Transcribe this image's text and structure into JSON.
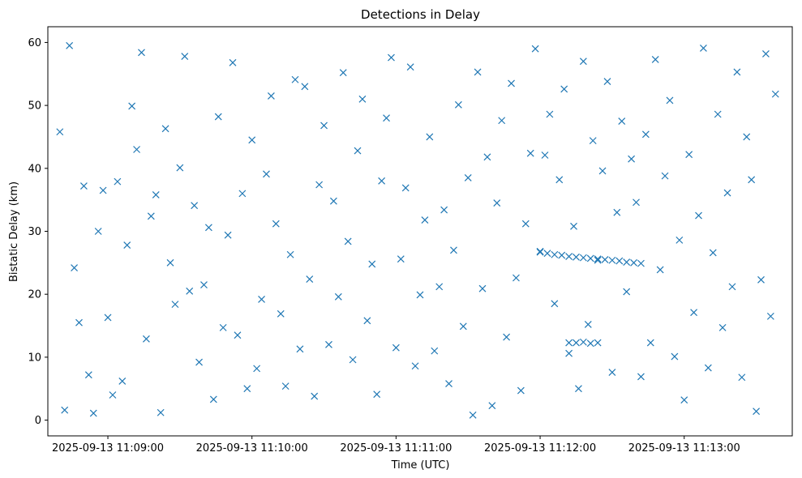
{
  "chart_data": {
    "type": "scatter",
    "title": "Detections in Delay",
    "xlabel": "Time (UTC)",
    "ylabel": "Bistatic Delay (km)",
    "x_axis": "datetime",
    "xlim": [
      "2025-09-13 11:08:35",
      "2025-09-13 11:13:45"
    ],
    "ylim": [
      -2.5,
      62.5
    ],
    "xticks": [
      "2025-09-13 11:09:00",
      "2025-09-13 11:10:00",
      "2025-09-13 11:11:00",
      "2025-09-13 11:12:00",
      "2025-09-13 11:13:00"
    ],
    "yticks": [
      0,
      10,
      20,
      30,
      40,
      50,
      60
    ],
    "grid": false,
    "marker": "x",
    "color": "#1f77b4",
    "series": [
      {
        "x": [
          "2025-09-13 11:08:40",
          "2025-09-13 11:08:42",
          "2025-09-13 11:08:44",
          "2025-09-13 11:08:46",
          "2025-09-13 11:08:48",
          "2025-09-13 11:08:50",
          "2025-09-13 11:08:52",
          "2025-09-13 11:08:54",
          "2025-09-13 11:08:56",
          "2025-09-13 11:08:58",
          "2025-09-13 11:09:00",
          "2025-09-13 11:09:02",
          "2025-09-13 11:09:04",
          "2025-09-13 11:09:06",
          "2025-09-13 11:09:08",
          "2025-09-13 11:09:10",
          "2025-09-13 11:09:12",
          "2025-09-13 11:09:14",
          "2025-09-13 11:09:16",
          "2025-09-13 11:09:18",
          "2025-09-13 11:09:20",
          "2025-09-13 11:09:22",
          "2025-09-13 11:09:24",
          "2025-09-13 11:09:26",
          "2025-09-13 11:09:28",
          "2025-09-13 11:09:30",
          "2025-09-13 11:09:32",
          "2025-09-13 11:09:34",
          "2025-09-13 11:09:36",
          "2025-09-13 11:09:38",
          "2025-09-13 11:09:40",
          "2025-09-13 11:09:42",
          "2025-09-13 11:09:44",
          "2025-09-13 11:09:46",
          "2025-09-13 11:09:48",
          "2025-09-13 11:09:50",
          "2025-09-13 11:09:52",
          "2025-09-13 11:09:54",
          "2025-09-13 11:09:56",
          "2025-09-13 11:09:58",
          "2025-09-13 11:10:00",
          "2025-09-13 11:10:02",
          "2025-09-13 11:10:04",
          "2025-09-13 11:10:06",
          "2025-09-13 11:10:08",
          "2025-09-13 11:10:10",
          "2025-09-13 11:10:12",
          "2025-09-13 11:10:14",
          "2025-09-13 11:10:16",
          "2025-09-13 11:10:18",
          "2025-09-13 11:10:20",
          "2025-09-13 11:10:22",
          "2025-09-13 11:10:24",
          "2025-09-13 11:10:26",
          "2025-09-13 11:10:28",
          "2025-09-13 11:10:30",
          "2025-09-13 11:10:32",
          "2025-09-13 11:10:34",
          "2025-09-13 11:10:36",
          "2025-09-13 11:10:38",
          "2025-09-13 11:10:40",
          "2025-09-13 11:10:42",
          "2025-09-13 11:10:44",
          "2025-09-13 11:10:46",
          "2025-09-13 11:10:48",
          "2025-09-13 11:10:50",
          "2025-09-13 11:10:52",
          "2025-09-13 11:10:54",
          "2025-09-13 11:10:56",
          "2025-09-13 11:10:58",
          "2025-09-13 11:11:00",
          "2025-09-13 11:11:02",
          "2025-09-13 11:11:04",
          "2025-09-13 11:11:06",
          "2025-09-13 11:11:08",
          "2025-09-13 11:11:10",
          "2025-09-13 11:11:12",
          "2025-09-13 11:11:14",
          "2025-09-13 11:11:16",
          "2025-09-13 11:11:18",
          "2025-09-13 11:11:20",
          "2025-09-13 11:11:22",
          "2025-09-13 11:11:24",
          "2025-09-13 11:11:26",
          "2025-09-13 11:11:28",
          "2025-09-13 11:11:30",
          "2025-09-13 11:11:32",
          "2025-09-13 11:11:34",
          "2025-09-13 11:11:36",
          "2025-09-13 11:11:38",
          "2025-09-13 11:11:40",
          "2025-09-13 11:11:42",
          "2025-09-13 11:11:44",
          "2025-09-13 11:11:46",
          "2025-09-13 11:11:48",
          "2025-09-13 11:11:50",
          "2025-09-13 11:11:52",
          "2025-09-13 11:11:54",
          "2025-09-13 11:11:56",
          "2025-09-13 11:11:58",
          "2025-09-13 11:12:00",
          "2025-09-13 11:12:02",
          "2025-09-13 11:12:04",
          "2025-09-13 11:12:06",
          "2025-09-13 11:12:08",
          "2025-09-13 11:12:10",
          "2025-09-13 11:12:12",
          "2025-09-13 11:12:14",
          "2025-09-13 11:12:16",
          "2025-09-13 11:12:18",
          "2025-09-13 11:12:20",
          "2025-09-13 11:12:22",
          "2025-09-13 11:12:24",
          "2025-09-13 11:12:26",
          "2025-09-13 11:12:28",
          "2025-09-13 11:12:30",
          "2025-09-13 11:12:32",
          "2025-09-13 11:12:34",
          "2025-09-13 11:12:36",
          "2025-09-13 11:12:38",
          "2025-09-13 11:12:40",
          "2025-09-13 11:12:42",
          "2025-09-13 11:12:44",
          "2025-09-13 11:12:46",
          "2025-09-13 11:12:48",
          "2025-09-13 11:12:50",
          "2025-09-13 11:12:52",
          "2025-09-13 11:12:54",
          "2025-09-13 11:12:56",
          "2025-09-13 11:12:58",
          "2025-09-13 11:13:00",
          "2025-09-13 11:13:02",
          "2025-09-13 11:13:04",
          "2025-09-13 11:13:06",
          "2025-09-13 11:13:08",
          "2025-09-13 11:13:10",
          "2025-09-13 11:13:12",
          "2025-09-13 11:13:14",
          "2025-09-13 11:13:16",
          "2025-09-13 11:13:18",
          "2025-09-13 11:13:20",
          "2025-09-13 11:13:22",
          "2025-09-13 11:13:24",
          "2025-09-13 11:13:26",
          "2025-09-13 11:13:28",
          "2025-09-13 11:13:30",
          "2025-09-13 11:13:32",
          "2025-09-13 11:13:34",
          "2025-09-13 11:13:36",
          "2025-09-13 11:13:38",
          "2025-09-13 11:12:00",
          "2025-09-13 11:12:03",
          "2025-09-13 11:12:06",
          "2025-09-13 11:12:09",
          "2025-09-13 11:12:12",
          "2025-09-13 11:12:15",
          "2025-09-13 11:12:18",
          "2025-09-13 11:12:21",
          "2025-09-13 11:12:24",
          "2025-09-13 11:12:27",
          "2025-09-13 11:12:30",
          "2025-09-13 11:12:33",
          "2025-09-13 11:12:36",
          "2025-09-13 11:12:39",
          "2025-09-13 11:12:42",
          "2025-09-13 11:12:12",
          "2025-09-13 11:12:15",
          "2025-09-13 11:12:18",
          "2025-09-13 11:12:21",
          "2025-09-13 11:12:24"
        ],
        "y": [
          45.8,
          1.6,
          59.5,
          24.2,
          15.5,
          37.2,
          7.2,
          1.1,
          30.0,
          36.5,
          16.3,
          4.0,
          37.9,
          6.2,
          27.8,
          49.9,
          43.0,
          58.4,
          12.9,
          32.4,
          35.8,
          1.2,
          46.3,
          25.0,
          18.4,
          40.1,
          57.8,
          20.5,
          34.1,
          9.2,
          21.5,
          30.6,
          3.3,
          48.2,
          14.7,
          29.4,
          56.8,
          13.5,
          36.0,
          5.0,
          44.5,
          8.2,
          19.2,
          39.1,
          51.5,
          31.2,
          16.9,
          5.4,
          26.3,
          54.1,
          11.3,
          53.0,
          22.4,
          3.8,
          37.4,
          46.8,
          12.0,
          34.8,
          19.6,
          55.2,
          28.4,
          9.6,
          42.8,
          51.0,
          15.8,
          24.8,
          4.1,
          38.0,
          48.0,
          57.6,
          11.5,
          25.6,
          36.9,
          56.1,
          8.6,
          19.9,
          31.8,
          45.0,
          11.0,
          21.2,
          33.4,
          5.8,
          27.0,
          50.1,
          14.9,
          38.5,
          0.8,
          55.3,
          20.9,
          41.8,
          2.3,
          34.5,
          47.6,
          13.2,
          53.5,
          22.6,
          4.7,
          31.2,
          42.4,
          59.0,
          26.8,
          42.1,
          48.6,
          18.5,
          38.2,
          52.6,
          10.6,
          30.8,
          5.0,
          57.0,
          15.2,
          44.4,
          25.4,
          39.6,
          53.8,
          7.6,
          33.0,
          47.5,
          20.4,
          41.5,
          34.6,
          6.9,
          45.4,
          12.3,
          57.3,
          23.9,
          38.8,
          50.8,
          10.1,
          28.6,
          3.2,
          42.2,
          17.1,
          32.5,
          59.1,
          8.3,
          26.6,
          48.6,
          14.7,
          36.1,
          21.2,
          55.3,
          6.8,
          45.0,
          38.2,
          1.4,
          22.3,
          58.2,
          16.5,
          51.8,
          26.7,
          26.5,
          26.3,
          26.2,
          26.0,
          25.9,
          25.8,
          25.7,
          25.6,
          25.5,
          25.4,
          25.3,
          25.1,
          25.0,
          24.9,
          12.3,
          12.3,
          12.4,
          12.2,
          12.3
        ]
      }
    ]
  }
}
